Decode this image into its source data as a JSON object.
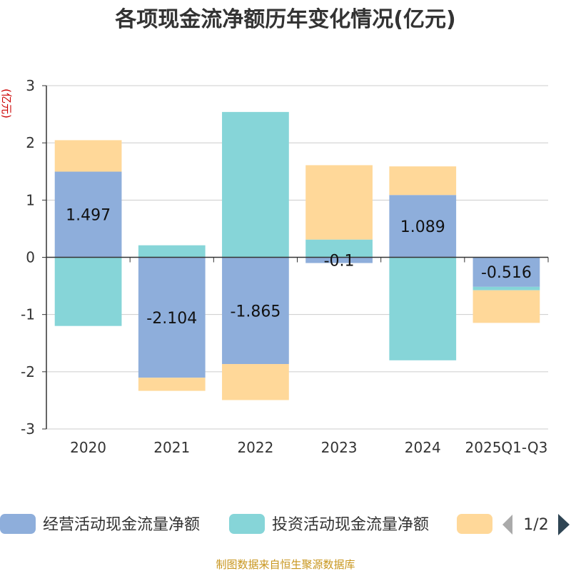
{
  "chart_data": {
    "type": "bar",
    "stacked": true,
    "title": "各项现金流净额历年变化情况(亿元)",
    "ylabel": "(亿元)",
    "ylim": [
      -3,
      3
    ],
    "yticks": [
      3,
      2,
      1,
      0,
      -1,
      -2,
      -3
    ],
    "grid": true,
    "categories": [
      "2020",
      "2021",
      "2022",
      "2023",
      "2024",
      "2025Q1-Q3"
    ],
    "series": [
      {
        "name": "经营活动现金流量净额",
        "color": "#8eaedb",
        "values": [
          1.497,
          -2.104,
          -1.865,
          -0.1,
          1.089,
          -0.516
        ]
      },
      {
        "name": "投资活动现金流量净额",
        "color": "#86d5d8",
        "values": [
          -1.2,
          0.21,
          2.54,
          0.31,
          -1.8,
          -0.06
        ]
      },
      {
        "name": "",
        "color": "#ffd899",
        "values": [
          0.55,
          -0.23,
          -0.63,
          1.3,
          0.5,
          -0.57
        ]
      }
    ],
    "data_labels": [
      "1.497",
      "-2.104",
      "-1.865",
      "-0.1",
      "1.089",
      "-0.516"
    ],
    "legend": {
      "position": "bottom",
      "page": "1/2"
    }
  },
  "source": "制图数据来自恒生聚源数据库",
  "colors": {
    "axis": "#333333",
    "grid": "#cccccc",
    "ylabel": "#cc0000",
    "source": "#c8961e",
    "pager_active": "#2f4554",
    "pager_inactive": "#aaaaaa"
  }
}
